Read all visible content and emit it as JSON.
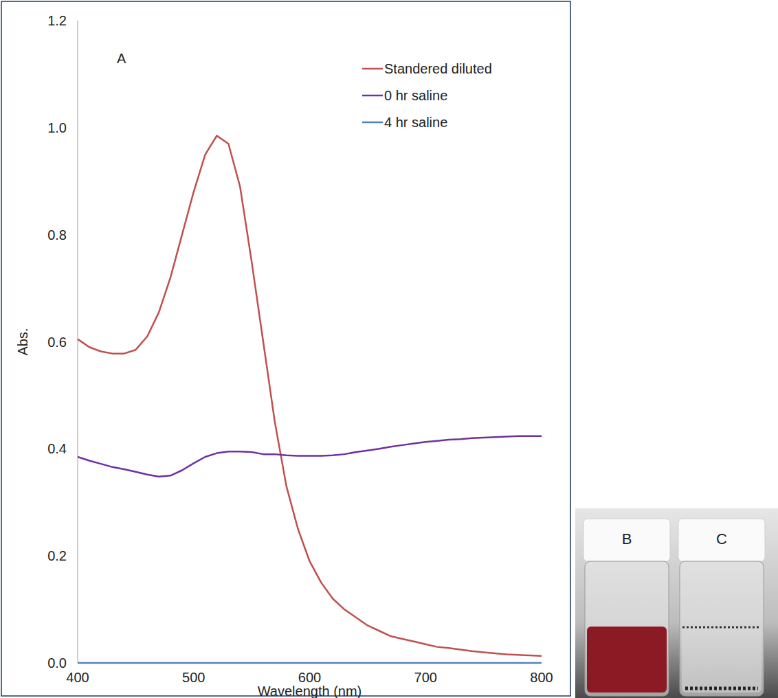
{
  "chart_data": {
    "type": "line",
    "panel_label": "A",
    "x_label": "Wavelength (nm)",
    "y_label": "Abs.",
    "xlim": [
      400,
      800
    ],
    "xticks": [
      400,
      500,
      600,
      700,
      800
    ],
    "ylim": [
      0,
      1.2
    ],
    "yticks": [
      {
        "value": 0,
        "label": "0.0"
      },
      {
        "value": 0.2,
        "label": "0.2"
      },
      {
        "value": 0.4,
        "label": "0.4"
      },
      {
        "value": 0.6,
        "label": "0.6"
      },
      {
        "value": 0.8,
        "label": "0.8"
      },
      {
        "value": 1.0,
        "label": "1.0"
      },
      {
        "value": 1.2,
        "label": "1.2"
      }
    ],
    "grid": false,
    "legend": "top-right",
    "x": [
      400,
      410,
      420,
      430,
      440,
      450,
      460,
      470,
      480,
      490,
      500,
      510,
      520,
      530,
      540,
      550,
      560,
      570,
      580,
      590,
      600,
      610,
      620,
      630,
      640,
      650,
      660,
      670,
      680,
      690,
      700,
      710,
      720,
      730,
      740,
      750,
      760,
      770,
      780,
      790,
      800
    ],
    "series": [
      {
        "name": "Standered diluted",
        "color": "#c0504d",
        "values": [
          0.605,
          0.59,
          0.582,
          0.578,
          0.578,
          0.585,
          0.61,
          0.655,
          0.72,
          0.8,
          0.88,
          0.95,
          0.985,
          0.97,
          0.89,
          0.75,
          0.6,
          0.45,
          0.33,
          0.25,
          0.19,
          0.15,
          0.12,
          0.1,
          0.085,
          0.07,
          0.06,
          0.05,
          0.045,
          0.04,
          0.035,
          0.03,
          0.028,
          0.025,
          0.022,
          0.02,
          0.018,
          0.016,
          0.015,
          0.014,
          0.013
        ]
      },
      {
        "name": "0 hr saline",
        "color": "#7030a0",
        "values": [
          0.385,
          0.378,
          0.372,
          0.366,
          0.362,
          0.357,
          0.352,
          0.348,
          0.35,
          0.36,
          0.373,
          0.385,
          0.392,
          0.395,
          0.395,
          0.394,
          0.39,
          0.39,
          0.388,
          0.387,
          0.387,
          0.387,
          0.388,
          0.39,
          0.394,
          0.397,
          0.4,
          0.404,
          0.407,
          0.41,
          0.413,
          0.415,
          0.417,
          0.418,
          0.42,
          0.421,
          0.422,
          0.423,
          0.424,
          0.424,
          0.424
        ]
      },
      {
        "name": "4 hr saline",
        "color": "#4f81bd",
        "values": [
          0,
          0,
          0,
          0,
          0,
          0,
          0,
          0,
          0,
          0,
          0,
          0,
          0,
          0,
          0,
          0,
          0,
          0,
          0,
          0,
          0,
          0,
          0,
          0,
          0,
          0,
          0,
          0,
          0,
          0,
          0,
          0,
          0,
          0,
          0,
          0,
          0,
          0,
          0,
          0,
          0
        ]
      }
    ]
  },
  "photo": {
    "labels": [
      "B",
      "C"
    ]
  }
}
